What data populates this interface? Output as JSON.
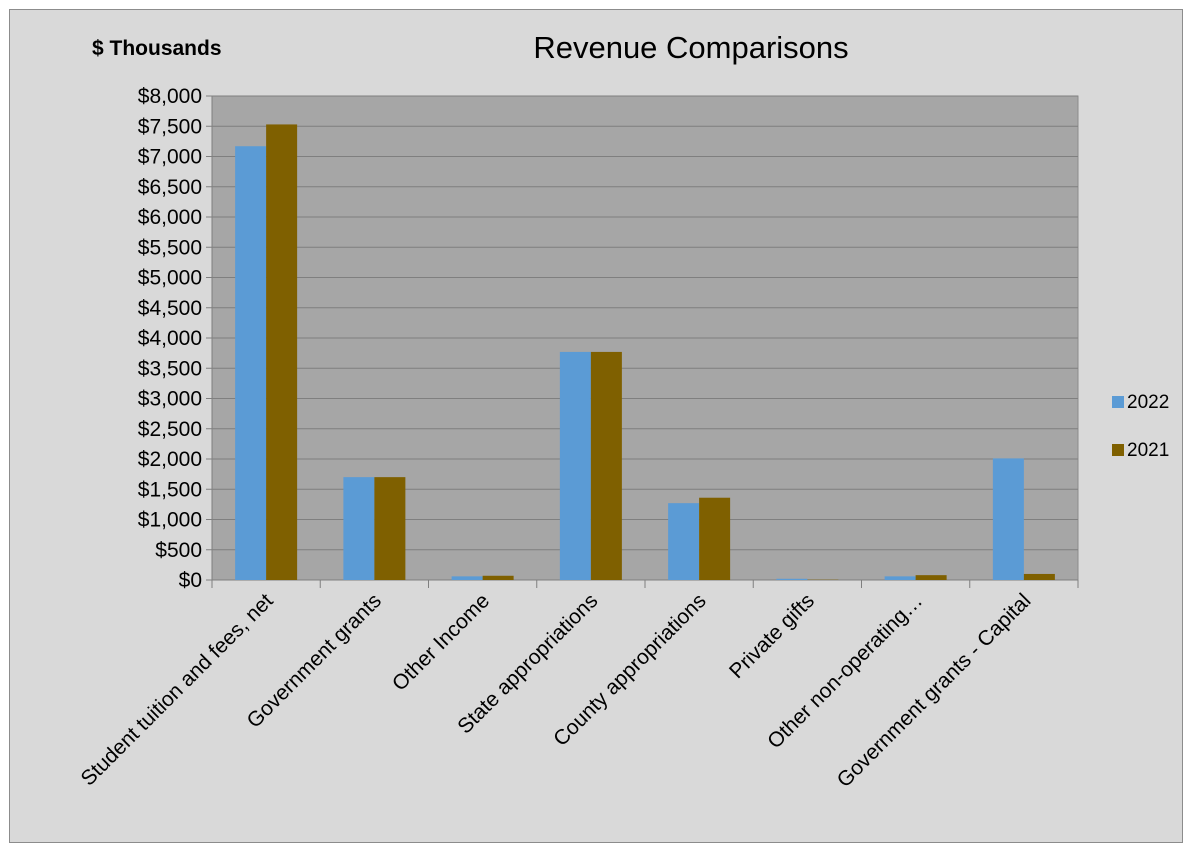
{
  "chart_data": {
    "type": "bar",
    "title": "Revenue Comparisons",
    "unit_label": "$ Thousands",
    "categories": [
      "Student tuition and fees, net",
      "Government grants",
      "Other Income",
      "State appropriations",
      "County appropriations",
      "Private gifts",
      "Other non-operating…",
      "Government grants - Capital"
    ],
    "series": [
      {
        "name": "2022",
        "color": "#5b9bd5",
        "values": [
          7170,
          1700,
          60,
          3770,
          1270,
          20,
          60,
          2010
        ]
      },
      {
        "name": "2021",
        "color": "#7f6000",
        "values": [
          7530,
          1700,
          70,
          3770,
          1360,
          5,
          80,
          100
        ]
      }
    ],
    "ylim": [
      0,
      8000
    ],
    "ytick_step": 500,
    "ytick_labels": [
      "$0",
      "$500",
      "$1,000",
      "$1,500",
      "$2,000",
      "$2,500",
      "$3,000",
      "$3,500",
      "$4,000",
      "$4,500",
      "$5,000",
      "$5,500",
      "$6,000",
      "$6,500",
      "$7,000",
      "$7,500",
      "$8,000"
    ],
    "grid": true,
    "legend_position": "right",
    "plot_background": "#a6a6a6",
    "chart_background": "#d9d9d9"
  }
}
